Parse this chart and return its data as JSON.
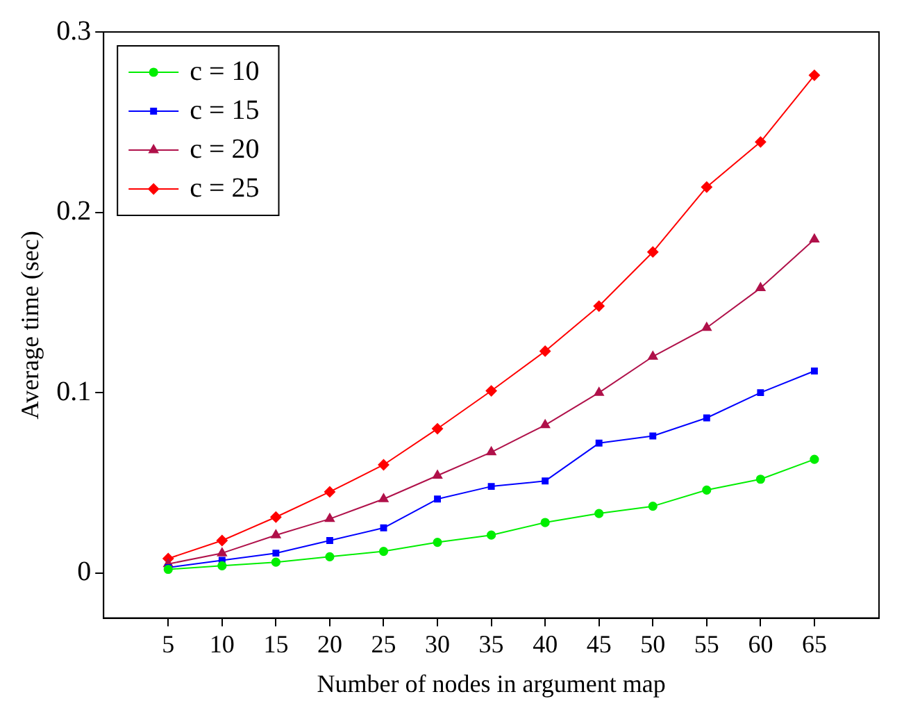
{
  "chart_data": {
    "type": "line",
    "xlabel": "Number of nodes in argument map",
    "ylabel": "Average time (sec)",
    "x": [
      5,
      10,
      15,
      20,
      25,
      30,
      35,
      40,
      45,
      50,
      55,
      60,
      65
    ],
    "xlim": [
      -1,
      71
    ],
    "xticks": [
      5,
      10,
      15,
      20,
      25,
      30,
      35,
      40,
      45,
      50,
      55,
      60,
      65
    ],
    "ylim": [
      -0.025,
      0.3
    ],
    "yticks": [
      0,
      0.1,
      0.2,
      0.3
    ],
    "grid": false,
    "legend": "top left",
    "series": [
      {
        "name": "c = 10",
        "color": "#00ee00",
        "marker": "circle",
        "values": [
          0.002,
          0.004,
          0.006,
          0.009,
          0.012,
          0.017,
          0.021,
          0.028,
          0.033,
          0.037,
          0.046,
          0.052,
          0.063
        ]
      },
      {
        "name": "c = 15",
        "color": "#0000ff",
        "marker": "square",
        "values": [
          0.003,
          0.007,
          0.011,
          0.018,
          0.025,
          0.041,
          0.048,
          0.051,
          0.072,
          0.076,
          0.086,
          0.1,
          0.112
        ]
      },
      {
        "name": "c = 20",
        "color": "#b0114a",
        "marker": "triangle",
        "values": [
          0.005,
          0.011,
          0.021,
          0.03,
          0.041,
          0.054,
          0.067,
          0.082,
          0.1,
          0.12,
          0.136,
          0.158,
          0.185
        ]
      },
      {
        "name": "c = 25",
        "color": "#ff0000",
        "marker": "diamond",
        "values": [
          0.008,
          0.018,
          0.031,
          0.045,
          0.06,
          0.08,
          0.101,
          0.123,
          0.148,
          0.178,
          0.214,
          0.239,
          0.276
        ]
      }
    ]
  }
}
